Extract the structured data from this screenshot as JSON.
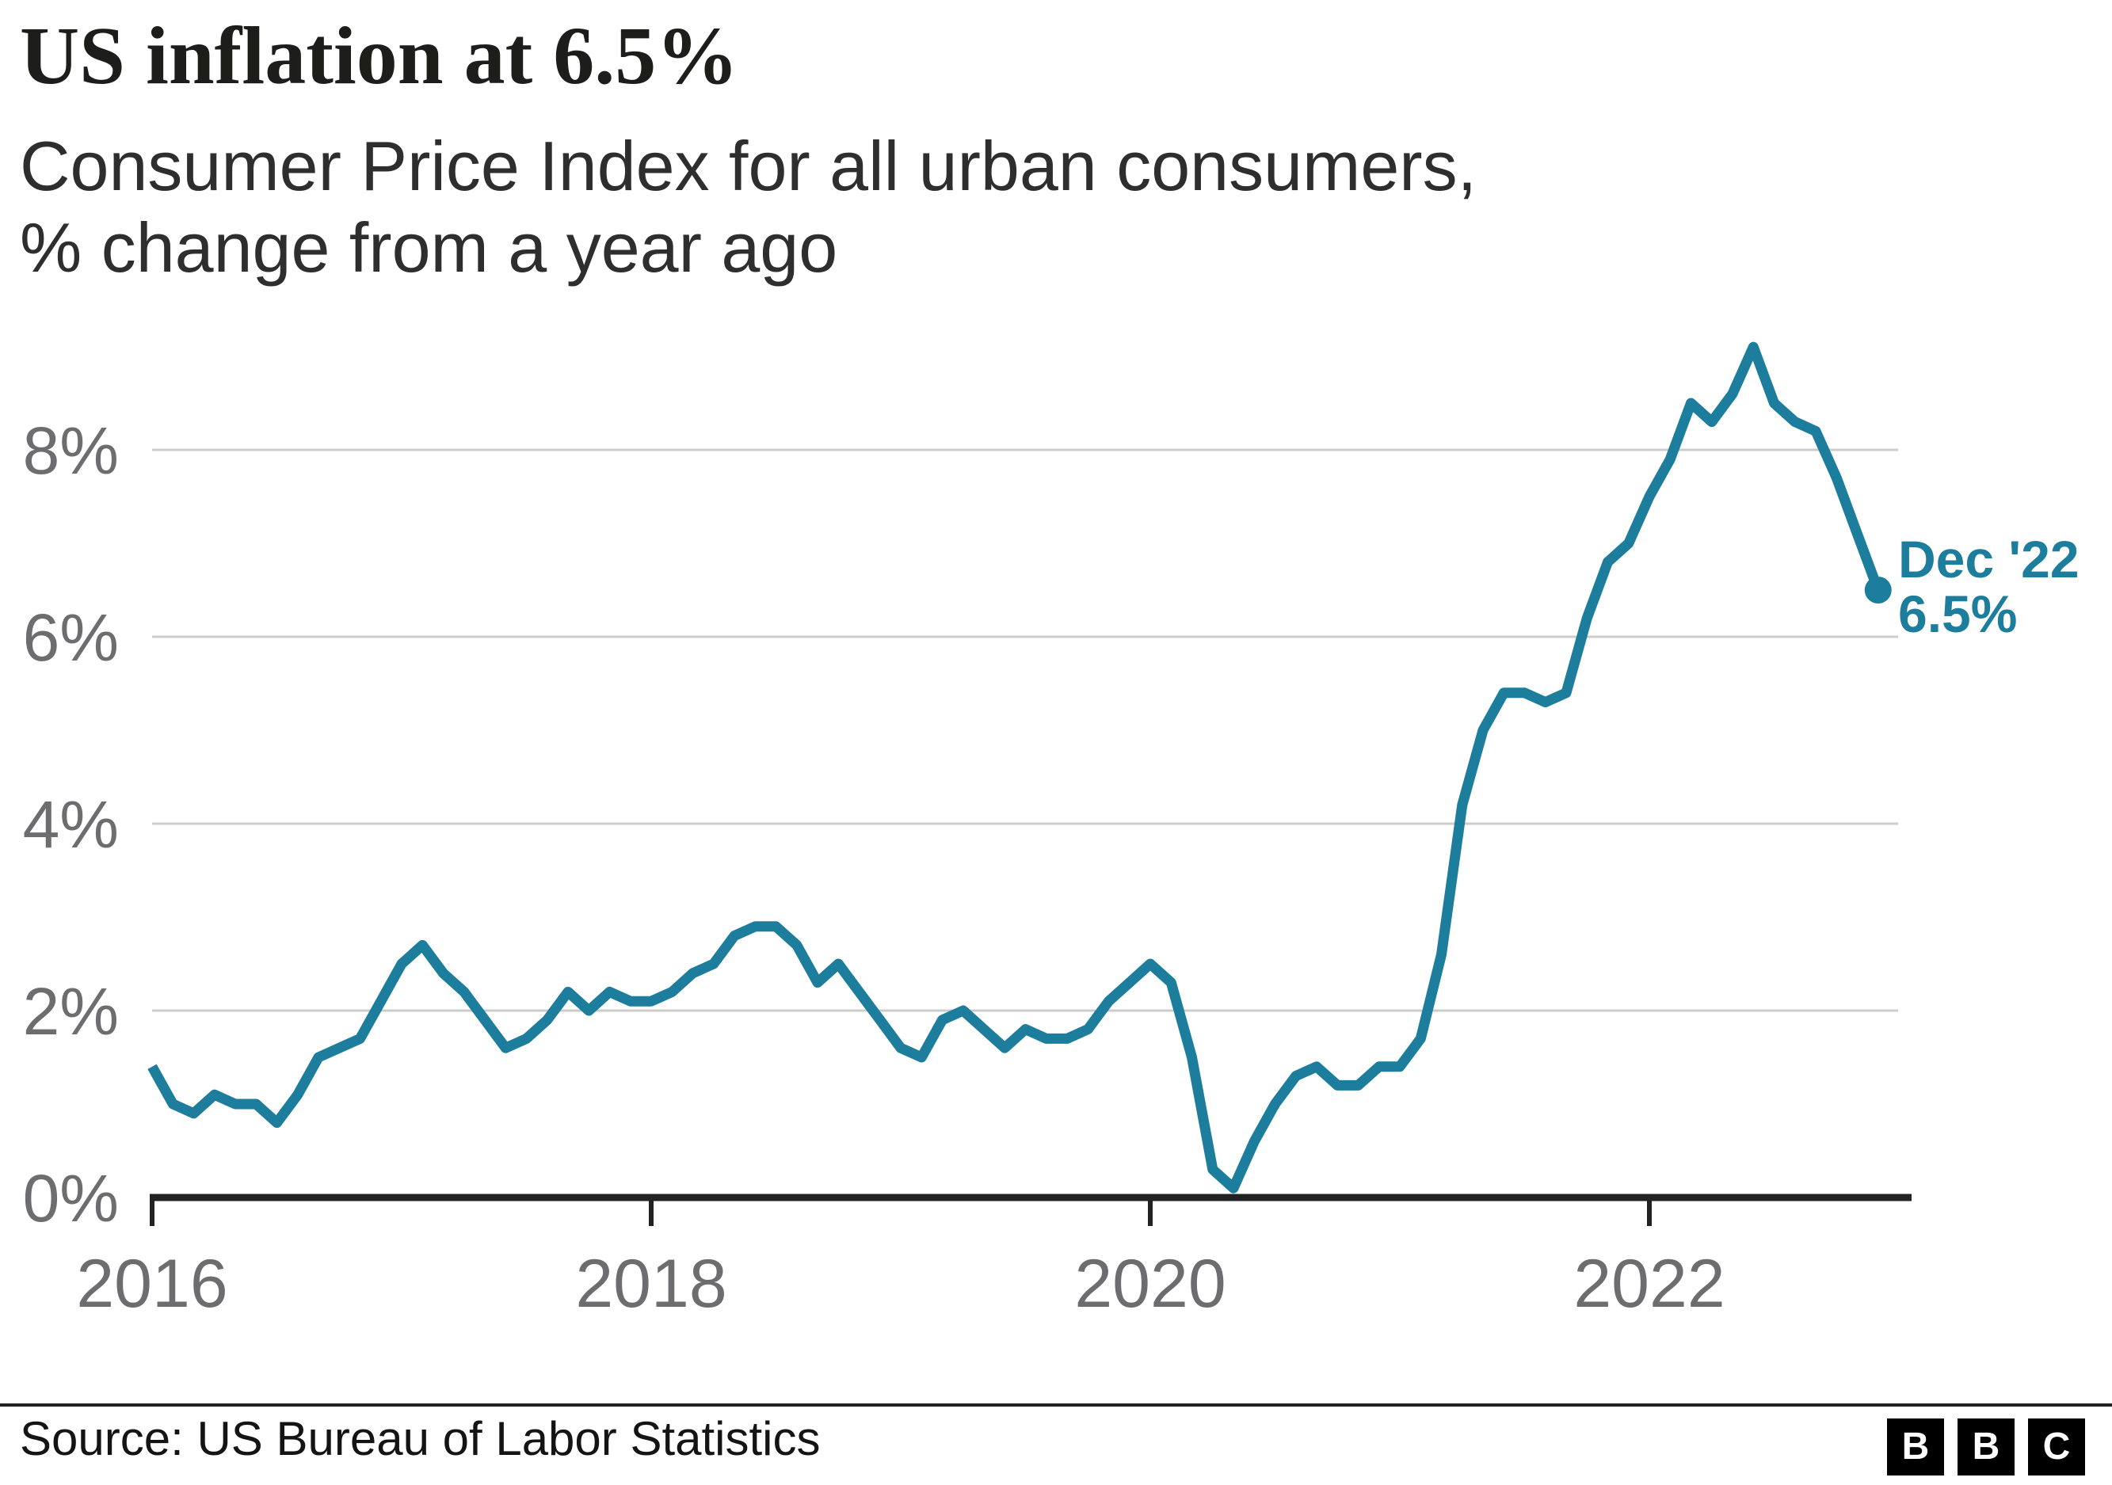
{
  "header": {
    "title": "US inflation at 6.5%",
    "subtitle_line1": "Consumer Price Index for all urban consumers,",
    "subtitle_line2": "% change from a year ago"
  },
  "chart_data": {
    "type": "line",
    "title": "US inflation at 6.5%",
    "subtitle": "Consumer Price Index for all urban consumers, % change from a year ago",
    "x_unit": "month",
    "x_start": "Jan 2016",
    "x_end": "Dec 2022",
    "series": [
      {
        "name": "CPI all urban consumers, % change from a year ago",
        "values": [
          1.4,
          1.0,
          0.9,
          1.1,
          1.0,
          1.0,
          0.8,
          1.1,
          1.5,
          1.6,
          1.7,
          2.1,
          2.5,
          2.7,
          2.4,
          2.2,
          1.9,
          1.6,
          1.7,
          1.9,
          2.2,
          2.0,
          2.2,
          2.1,
          2.1,
          2.2,
          2.4,
          2.5,
          2.8,
          2.9,
          2.9,
          2.7,
          2.3,
          2.5,
          2.2,
          1.9,
          1.6,
          1.5,
          1.9,
          2.0,
          1.8,
          1.6,
          1.8,
          1.7,
          1.7,
          1.8,
          2.1,
          2.3,
          2.5,
          2.3,
          1.5,
          0.3,
          0.1,
          0.6,
          1.0,
          1.3,
          1.4,
          1.2,
          1.2,
          1.4,
          1.4,
          1.7,
          2.6,
          4.2,
          5.0,
          5.4,
          5.4,
          5.3,
          5.4,
          6.2,
          6.8,
          7.0,
          7.5,
          7.9,
          8.5,
          8.3,
          8.6,
          9.1,
          8.5,
          8.3,
          8.2,
          7.7,
          7.1,
          6.5
        ]
      }
    ],
    "x_tick_labels": [
      "2016",
      "2018",
      "2020",
      "2022"
    ],
    "x_tick_month_indices": [
      0,
      24,
      48,
      72
    ],
    "y_tick_labels": [
      "0%",
      "2%",
      "4%",
      "6%",
      "8%"
    ],
    "y_tick_values": [
      0,
      2,
      4,
      6,
      8
    ],
    "ylim": [
      0,
      9.2
    ],
    "grid": "horizontal-only",
    "legend": "none",
    "annotation": {
      "line1": "Dec '22",
      "line2": "6.5%",
      "month_index": 83,
      "value": 6.5
    }
  },
  "annotation": {
    "line1": "Dec '22",
    "line2": "6.5%"
  },
  "footer": {
    "source": "Source: US Bureau of Labor Statistics",
    "logo": [
      "B",
      "B",
      "C"
    ]
  },
  "colors": {
    "line": "#1d7d9c",
    "grid": "#cccccc",
    "axis": "#222222",
    "tick_label": "#6d6d70",
    "title": "#1d1d1b",
    "subtitle": "#2e2e2e",
    "annotation": "#1d7d9c",
    "footer_text": "#141414",
    "logo_bg": "#000000",
    "logo_fg": "#ffffff"
  }
}
